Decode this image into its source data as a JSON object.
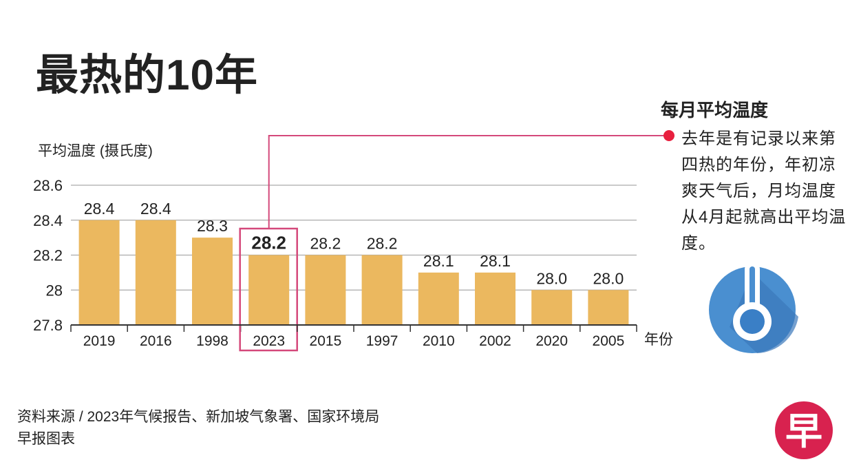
{
  "title": "最热的10年",
  "side_panel": {
    "heading": "每月平均温度",
    "text": "去年是有记录以来第四热的年份，年初凉爽天气后，月均温度从4月起就高出平均温度。",
    "icon": "thermometer-icon"
  },
  "source": {
    "line1": "资料来源 / 2023年气候报告、新加坡气象署、国家环境局",
    "line2": "早报图表"
  },
  "logo": {
    "text": "早",
    "color": "#d8224f"
  },
  "colors": {
    "bar": "#ebb85f",
    "highlight": "#d4487a",
    "dot": "#e8203f",
    "icon_blue": "#4a8fd0"
  },
  "chart_data": {
    "type": "bar",
    "title": "最热的10年",
    "ylabel": "平均温度 (摄氏度)",
    "xlabel": "年份",
    "categories": [
      "2019",
      "2016",
      "1998",
      "2023",
      "2015",
      "1997",
      "2010",
      "2002",
      "2020",
      "2005"
    ],
    "values": [
      28.4,
      28.4,
      28.3,
      28.2,
      28.2,
      28.2,
      28.1,
      28.1,
      28.0,
      28.0
    ],
    "data_labels": [
      "28.4",
      "28.4",
      "28.3",
      "28.2",
      "28.2",
      "28.2",
      "28.1",
      "28.1",
      "28.0",
      "28.0"
    ],
    "highlight": "2023",
    "ylim": [
      27.8,
      28.6
    ],
    "yticks": [
      "27.8",
      "28",
      "28.2",
      "28.4",
      "28.6"
    ],
    "grid": true,
    "legend": "none"
  }
}
